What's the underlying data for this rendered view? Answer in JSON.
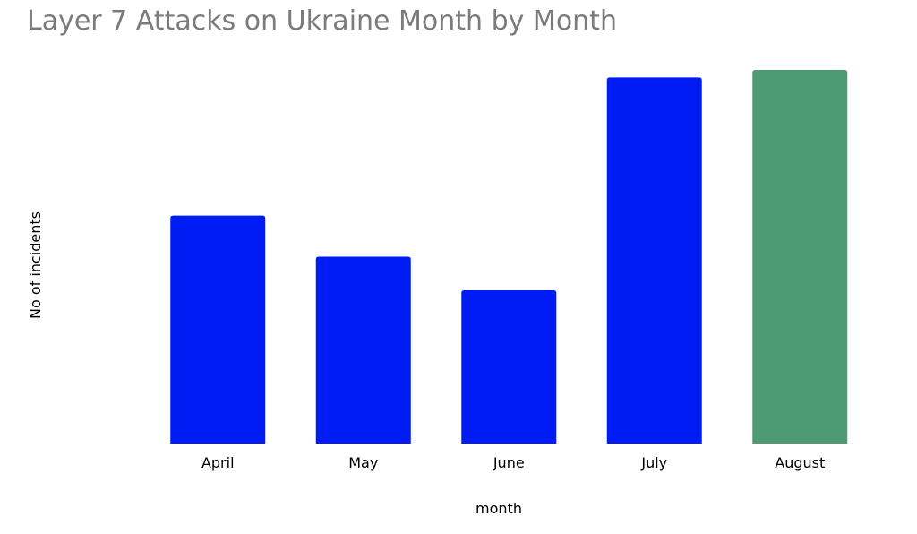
{
  "chart_data": {
    "type": "bar",
    "title": "Layer 7 Attacks on Ukraine Month by Month",
    "xlabel": "month",
    "ylabel": "No of incidents",
    "categories": [
      "April",
      "May",
      "June",
      "July",
      "August"
    ],
    "values": [
      61,
      50,
      41,
      98,
      100
    ],
    "ylim": [
      0,
      100
    ],
    "grid": false,
    "colors": [
      "#001cf5",
      "#001cf5",
      "#001cf5",
      "#001cf5",
      "#4e9a72"
    ]
  }
}
